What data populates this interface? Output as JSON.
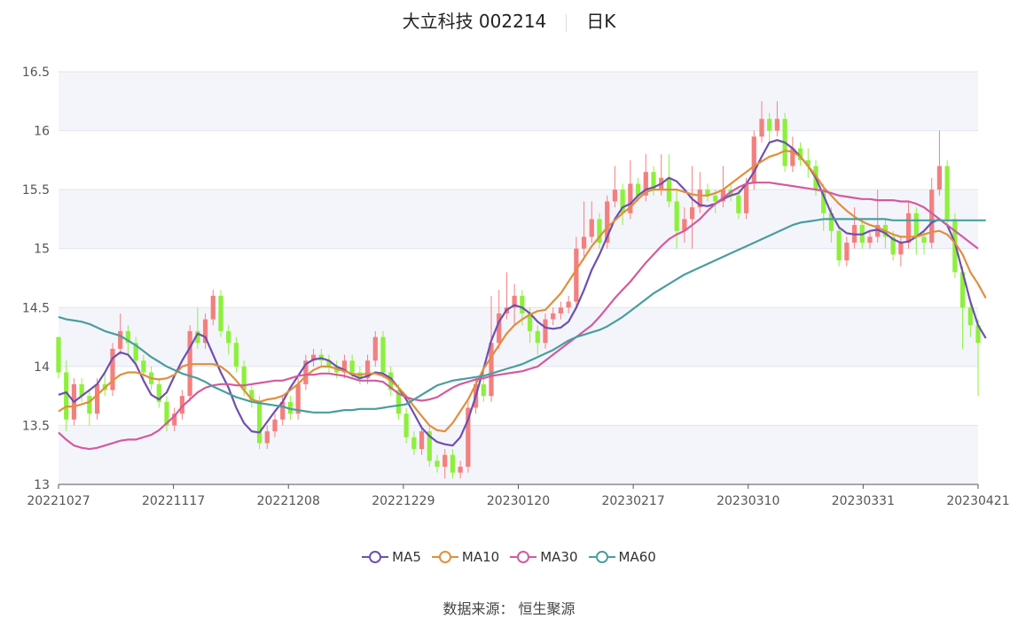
{
  "title": {
    "stock": "大立科技 002214",
    "period": "日K"
  },
  "source": "数据来源： 恒生聚源",
  "chart_data": {
    "type": "candlestick",
    "ylim": [
      13,
      16.5
    ],
    "yticks": [
      13,
      13.5,
      14,
      14.5,
      15,
      15.5,
      16,
      16.5
    ],
    "ytick_labels": [
      "13",
      "13.5",
      "14",
      "14.5",
      "15",
      "15.5",
      "16",
      "16.5"
    ],
    "xticks": [
      "20221027",
      "20221117",
      "20221208",
      "20221229",
      "20230120",
      "20230217",
      "20230310",
      "20230331",
      "20230421"
    ],
    "up_color": "#f47f7f",
    "down_color": "#8df03b",
    "n": 120,
    "candles": [
      [
        14.25,
        13.95,
        14.25,
        13.9
      ],
      [
        13.95,
        13.55,
        14.05,
        13.45
      ],
      [
        13.55,
        13.85,
        13.9,
        13.5
      ],
      [
        13.85,
        13.75,
        13.9,
        13.7
      ],
      [
        13.75,
        13.6,
        13.8,
        13.5
      ],
      [
        13.6,
        13.85,
        13.9,
        13.55
      ],
      [
        13.85,
        13.8,
        13.95,
        13.75
      ],
      [
        13.8,
        14.15,
        14.2,
        13.75
      ],
      [
        14.15,
        14.3,
        14.45,
        14.1
      ],
      [
        14.3,
        14.2,
        14.35,
        14.1
      ],
      [
        14.2,
        14.05,
        14.25,
        14.0
      ],
      [
        14.05,
        13.95,
        14.1,
        13.9
      ],
      [
        13.95,
        13.85,
        14.0,
        13.8
      ],
      [
        13.85,
        13.7,
        13.9,
        13.65
      ],
      [
        13.7,
        13.5,
        13.75,
        13.45
      ],
      [
        13.5,
        13.6,
        13.65,
        13.45
      ],
      [
        13.6,
        13.75,
        13.8,
        13.55
      ],
      [
        13.75,
        14.3,
        14.35,
        13.7
      ],
      [
        14.3,
        14.2,
        14.5,
        14.15
      ],
      [
        14.2,
        14.4,
        14.45,
        14.15
      ],
      [
        14.4,
        14.6,
        14.65,
        14.35
      ],
      [
        14.6,
        14.3,
        14.65,
        14.25
      ],
      [
        14.3,
        14.2,
        14.35,
        14.1
      ],
      [
        14.2,
        14.0,
        14.25,
        13.95
      ],
      [
        14.0,
        13.8,
        14.05,
        13.75
      ],
      [
        13.8,
        13.7,
        13.85,
        13.65
      ],
      [
        13.7,
        13.35,
        13.75,
        13.3
      ],
      [
        13.35,
        13.45,
        13.5,
        13.3
      ],
      [
        13.45,
        13.55,
        13.6,
        13.4
      ],
      [
        13.55,
        13.7,
        13.75,
        13.5
      ],
      [
        13.7,
        13.6,
        13.75,
        13.55
      ],
      [
        13.6,
        13.85,
        13.9,
        13.55
      ],
      [
        13.85,
        14.05,
        14.1,
        13.8
      ],
      [
        14.05,
        14.1,
        14.15,
        14.0
      ],
      [
        14.1,
        14.05,
        14.15,
        14.0
      ],
      [
        14.05,
        14.0,
        14.1,
        13.95
      ],
      [
        14.0,
        13.95,
        14.05,
        13.9
      ],
      [
        13.95,
        14.05,
        14.1,
        13.9
      ],
      [
        14.05,
        13.95,
        14.1,
        13.9
      ],
      [
        13.95,
        13.9,
        14.0,
        13.85
      ],
      [
        13.9,
        14.05,
        14.1,
        13.85
      ],
      [
        14.05,
        14.25,
        14.3,
        14.0
      ],
      [
        14.25,
        13.95,
        14.3,
        13.9
      ],
      [
        13.95,
        13.8,
        14.0,
        13.75
      ],
      [
        13.8,
        13.6,
        13.85,
        13.55
      ],
      [
        13.6,
        13.4,
        13.65,
        13.35
      ],
      [
        13.4,
        13.3,
        13.45,
        13.25
      ],
      [
        13.3,
        13.45,
        13.5,
        13.25
      ],
      [
        13.45,
        13.2,
        13.5,
        13.15
      ],
      [
        13.2,
        13.15,
        13.25,
        13.1
      ],
      [
        13.15,
        13.25,
        13.3,
        13.05
      ],
      [
        13.25,
        13.1,
        13.3,
        13.05
      ],
      [
        13.1,
        13.15,
        13.2,
        13.05
      ],
      [
        13.15,
        13.65,
        13.7,
        13.1
      ],
      [
        13.65,
        13.85,
        13.9,
        13.6
      ],
      [
        13.85,
        13.75,
        13.95,
        13.7
      ],
      [
        13.75,
        14.2,
        14.6,
        13.7
      ],
      [
        14.2,
        14.45,
        14.65,
        14.15
      ],
      [
        14.45,
        14.5,
        14.8,
        14.4
      ],
      [
        14.5,
        14.6,
        14.7,
        14.35
      ],
      [
        14.6,
        14.45,
        14.65,
        14.35
      ],
      [
        14.45,
        14.3,
        14.5,
        14.2
      ],
      [
        14.3,
        14.2,
        14.35,
        14.1
      ],
      [
        14.2,
        14.4,
        14.45,
        14.15
      ],
      [
        14.4,
        14.45,
        14.5,
        14.35
      ],
      [
        14.45,
        14.5,
        14.55,
        14.4
      ],
      [
        14.5,
        14.55,
        14.6,
        14.45
      ],
      [
        14.55,
        15.0,
        15.1,
        14.5
      ],
      [
        15.0,
        15.1,
        15.4,
        14.9
      ],
      [
        15.1,
        15.25,
        15.4,
        15.05
      ],
      [
        15.25,
        15.05,
        15.3,
        15.0
      ],
      [
        15.05,
        15.4,
        15.45,
        15.0
      ],
      [
        15.4,
        15.5,
        15.7,
        15.35
      ],
      [
        15.5,
        15.3,
        15.55,
        15.2
      ],
      [
        15.3,
        15.55,
        15.75,
        15.25
      ],
      [
        15.55,
        15.45,
        15.6,
        15.4
      ],
      [
        15.45,
        15.65,
        15.8,
        15.4
      ],
      [
        15.65,
        15.5,
        15.7,
        15.45
      ],
      [
        15.5,
        15.6,
        15.8,
        15.45
      ],
      [
        15.6,
        15.4,
        15.8,
        15.35
      ],
      [
        15.4,
        15.15,
        15.5,
        15.0
      ],
      [
        15.15,
        15.25,
        15.35,
        15.05
      ],
      [
        15.25,
        15.35,
        15.7,
        15.0
      ],
      [
        15.35,
        15.5,
        15.65,
        15.3
      ],
      [
        15.5,
        15.45,
        15.55,
        15.4
      ],
      [
        15.45,
        15.4,
        15.5,
        15.3
      ],
      [
        15.4,
        15.5,
        15.7,
        15.35
      ],
      [
        15.5,
        15.45,
        15.55,
        15.4
      ],
      [
        15.45,
        15.3,
        15.5,
        15.25
      ],
      [
        15.3,
        15.55,
        15.6,
        15.25
      ],
      [
        15.55,
        15.95,
        16.0,
        15.5
      ],
      [
        15.95,
        16.1,
        16.25,
        15.9
      ],
      [
        16.1,
        16.0,
        16.15,
        15.9
      ],
      [
        16.0,
        16.1,
        16.25,
        15.95
      ],
      [
        16.1,
        15.7,
        16.15,
        15.65
      ],
      [
        15.7,
        15.85,
        15.95,
        15.65
      ],
      [
        15.85,
        15.75,
        15.9,
        15.7
      ],
      [
        15.75,
        15.7,
        15.85,
        15.6
      ],
      [
        15.7,
        15.5,
        15.75,
        15.45
      ],
      [
        15.5,
        15.3,
        15.55,
        15.15
      ],
      [
        15.3,
        15.15,
        15.35,
        15.05
      ],
      [
        15.15,
        14.9,
        15.2,
        14.85
      ],
      [
        14.9,
        15.05,
        15.1,
        14.85
      ],
      [
        15.05,
        15.2,
        15.35,
        15.0
      ],
      [
        15.2,
        15.05,
        15.25,
        15.0
      ],
      [
        15.05,
        15.1,
        15.15,
        15.0
      ],
      [
        15.1,
        15.2,
        15.5,
        15.05
      ],
      [
        15.2,
        15.1,
        15.25,
        15.0
      ],
      [
        15.1,
        14.95,
        15.15,
        14.9
      ],
      [
        14.95,
        15.05,
        15.1,
        14.85
      ],
      [
        15.05,
        15.3,
        15.4,
        15.0
      ],
      [
        15.3,
        15.1,
        15.35,
        14.95
      ],
      [
        15.1,
        15.05,
        15.15,
        14.95
      ],
      [
        15.05,
        15.5,
        15.6,
        15.0
      ],
      [
        15.5,
        15.7,
        16.0,
        15.45
      ],
      [
        15.7,
        15.25,
        15.75,
        15.2
      ],
      [
        15.25,
        14.8,
        15.3,
        14.75
      ],
      [
        14.8,
        14.5,
        14.85,
        14.15
      ],
      [
        14.5,
        14.35,
        14.55,
        14.25
      ],
      [
        14.35,
        14.2,
        14.4,
        13.75
      ]
    ],
    "series": [
      {
        "name": "MA5",
        "color": "#6f4fb0"
      },
      {
        "name": "MA10",
        "color": "#e08f3d"
      },
      {
        "name": "MA30",
        "color": "#d35aa0"
      },
      {
        "name": "MA60",
        "color": "#4a9e9e"
      }
    ],
    "ma": {
      "MA5": [
        13.76,
        13.78,
        13.7,
        13.75,
        13.8,
        13.85,
        13.95,
        14.07,
        14.12,
        14.1,
        14.02,
        13.88,
        13.76,
        13.72,
        13.78,
        13.92,
        14.05,
        14.16,
        14.28,
        14.25,
        14.1,
        13.95,
        13.82,
        13.65,
        13.52,
        13.45,
        13.44,
        13.53,
        13.62,
        13.7,
        13.82,
        13.92,
        14.02,
        14.06,
        14.07,
        14.05,
        14.0,
        13.97,
        13.93,
        13.9,
        13.92,
        13.95,
        13.94,
        13.9,
        13.82,
        13.72,
        13.6,
        13.48,
        13.41,
        13.36,
        13.34,
        13.33,
        13.4,
        13.55,
        13.75,
        13.98,
        14.22,
        14.38,
        14.48,
        14.52,
        14.5,
        14.45,
        14.38,
        14.33,
        14.32,
        14.33,
        14.38,
        14.5,
        14.65,
        14.82,
        14.95,
        15.1,
        15.25,
        15.35,
        15.38,
        15.45,
        15.5,
        15.52,
        15.55,
        15.6,
        15.57,
        15.5,
        15.42,
        15.37,
        15.36,
        15.38,
        15.42,
        15.45,
        15.47,
        15.55,
        15.65,
        15.78,
        15.9,
        15.92,
        15.9,
        15.85,
        15.78,
        15.7,
        15.6,
        15.45,
        15.3,
        15.18,
        15.13,
        15.12,
        15.12,
        15.15,
        15.16,
        15.13,
        15.08,
        15.05,
        15.06,
        15.1,
        15.15,
        15.22,
        15.25,
        15.2,
        15.05,
        14.8,
        14.55,
        14.35,
        14.24
      ],
      "MA10": [
        13.62,
        13.66,
        13.66,
        13.68,
        13.7,
        13.76,
        13.82,
        13.88,
        13.93,
        13.95,
        13.95,
        13.93,
        13.9,
        13.89,
        13.9,
        13.93,
        14.0,
        14.02,
        14.02,
        14.02,
        14.02,
        14.0,
        13.95,
        13.88,
        13.8,
        13.72,
        13.7,
        13.72,
        13.73,
        13.75,
        13.8,
        13.85,
        13.92,
        13.97,
        14.0,
        14.0,
        13.98,
        13.96,
        13.94,
        13.93,
        13.94,
        13.94,
        13.92,
        13.88,
        13.82,
        13.75,
        13.66,
        13.58,
        13.5,
        13.46,
        13.45,
        13.52,
        13.62,
        13.72,
        13.85,
        13.98,
        14.08,
        14.18,
        14.28,
        14.35,
        14.4,
        14.44,
        14.47,
        14.48,
        14.55,
        14.62,
        14.72,
        14.82,
        14.92,
        15.02,
        15.1,
        15.18,
        15.24,
        15.3,
        15.35,
        15.42,
        15.48,
        15.5,
        15.5,
        15.5,
        15.5,
        15.48,
        15.46,
        15.45,
        15.45,
        15.47,
        15.5,
        15.55,
        15.6,
        15.65,
        15.7,
        15.74,
        15.78,
        15.8,
        15.83,
        15.82,
        15.78,
        15.7,
        15.62,
        15.52,
        15.45,
        15.38,
        15.32,
        15.27,
        15.23,
        15.2,
        15.18,
        15.15,
        15.12,
        15.1,
        15.1,
        15.1,
        15.12,
        15.14,
        15.15,
        15.12,
        15.05,
        14.95,
        14.8,
        14.7,
        14.58
      ],
      "MA30": [
        13.44,
        13.38,
        13.33,
        13.31,
        13.3,
        13.31,
        13.33,
        13.35,
        13.37,
        13.38,
        13.38,
        13.4,
        13.42,
        13.46,
        13.52,
        13.58,
        13.66,
        13.72,
        13.78,
        13.82,
        13.84,
        13.85,
        13.85,
        13.84,
        13.84,
        13.85,
        13.86,
        13.87,
        13.88,
        13.88,
        13.9,
        13.92,
        13.93,
        13.93,
        13.94,
        13.94,
        13.93,
        13.92,
        13.9,
        13.88,
        13.88,
        13.88,
        13.87,
        13.82,
        13.77,
        13.74,
        13.72,
        13.71,
        13.72,
        13.74,
        13.78,
        13.82,
        13.85,
        13.87,
        13.89,
        13.9,
        13.92,
        13.93,
        13.94,
        13.95,
        13.96,
        13.98,
        14.0,
        14.05,
        14.1,
        14.15,
        14.2,
        14.25,
        14.3,
        14.35,
        14.42,
        14.5,
        14.58,
        14.65,
        14.72,
        14.8,
        14.88,
        14.95,
        15.02,
        15.08,
        15.12,
        15.15,
        15.2,
        15.25,
        15.32,
        15.38,
        15.43,
        15.48,
        15.52,
        15.55,
        15.56,
        15.56,
        15.56,
        15.55,
        15.54,
        15.53,
        15.52,
        15.51,
        15.5,
        15.49,
        15.47,
        15.45,
        15.44,
        15.43,
        15.42,
        15.42,
        15.41,
        15.41,
        15.41,
        15.4,
        15.4,
        15.38,
        15.35,
        15.3,
        15.25,
        15.2,
        15.15,
        15.1,
        15.05,
        15.0
      ],
      "MA60": [
        14.42,
        14.4,
        14.39,
        14.38,
        14.36,
        14.33,
        14.3,
        14.28,
        14.26,
        14.22,
        14.18,
        14.13,
        14.08,
        14.04,
        14.0,
        13.97,
        13.94,
        13.92,
        13.9,
        13.87,
        13.83,
        13.8,
        13.77,
        13.74,
        13.72,
        13.7,
        13.69,
        13.68,
        13.67,
        13.66,
        13.64,
        13.63,
        13.62,
        13.61,
        13.61,
        13.61,
        13.62,
        13.63,
        13.63,
        13.64,
        13.64,
        13.64,
        13.65,
        13.66,
        13.67,
        13.68,
        13.72,
        13.76,
        13.8,
        13.84,
        13.86,
        13.88,
        13.89,
        13.9,
        13.91,
        13.92,
        13.94,
        13.96,
        13.98,
        14.0,
        14.02,
        14.05,
        14.08,
        14.11,
        14.14,
        14.18,
        14.22,
        14.25,
        14.27,
        14.29,
        14.31,
        14.34,
        14.38,
        14.42,
        14.47,
        14.52,
        14.57,
        14.62,
        14.66,
        14.7,
        14.74,
        14.78,
        14.81,
        14.84,
        14.87,
        14.9,
        14.93,
        14.96,
        14.99,
        15.02,
        15.05,
        15.08,
        15.11,
        15.14,
        15.17,
        15.2,
        15.22,
        15.23,
        15.24,
        15.25,
        15.25,
        15.25,
        15.25,
        15.25,
        15.25,
        15.25,
        15.25,
        15.25,
        15.24,
        15.24,
        15.24,
        15.24,
        15.24,
        15.24,
        15.24,
        15.24,
        15.24,
        15.24,
        15.24,
        15.24,
        15.24
      ]
    }
  }
}
